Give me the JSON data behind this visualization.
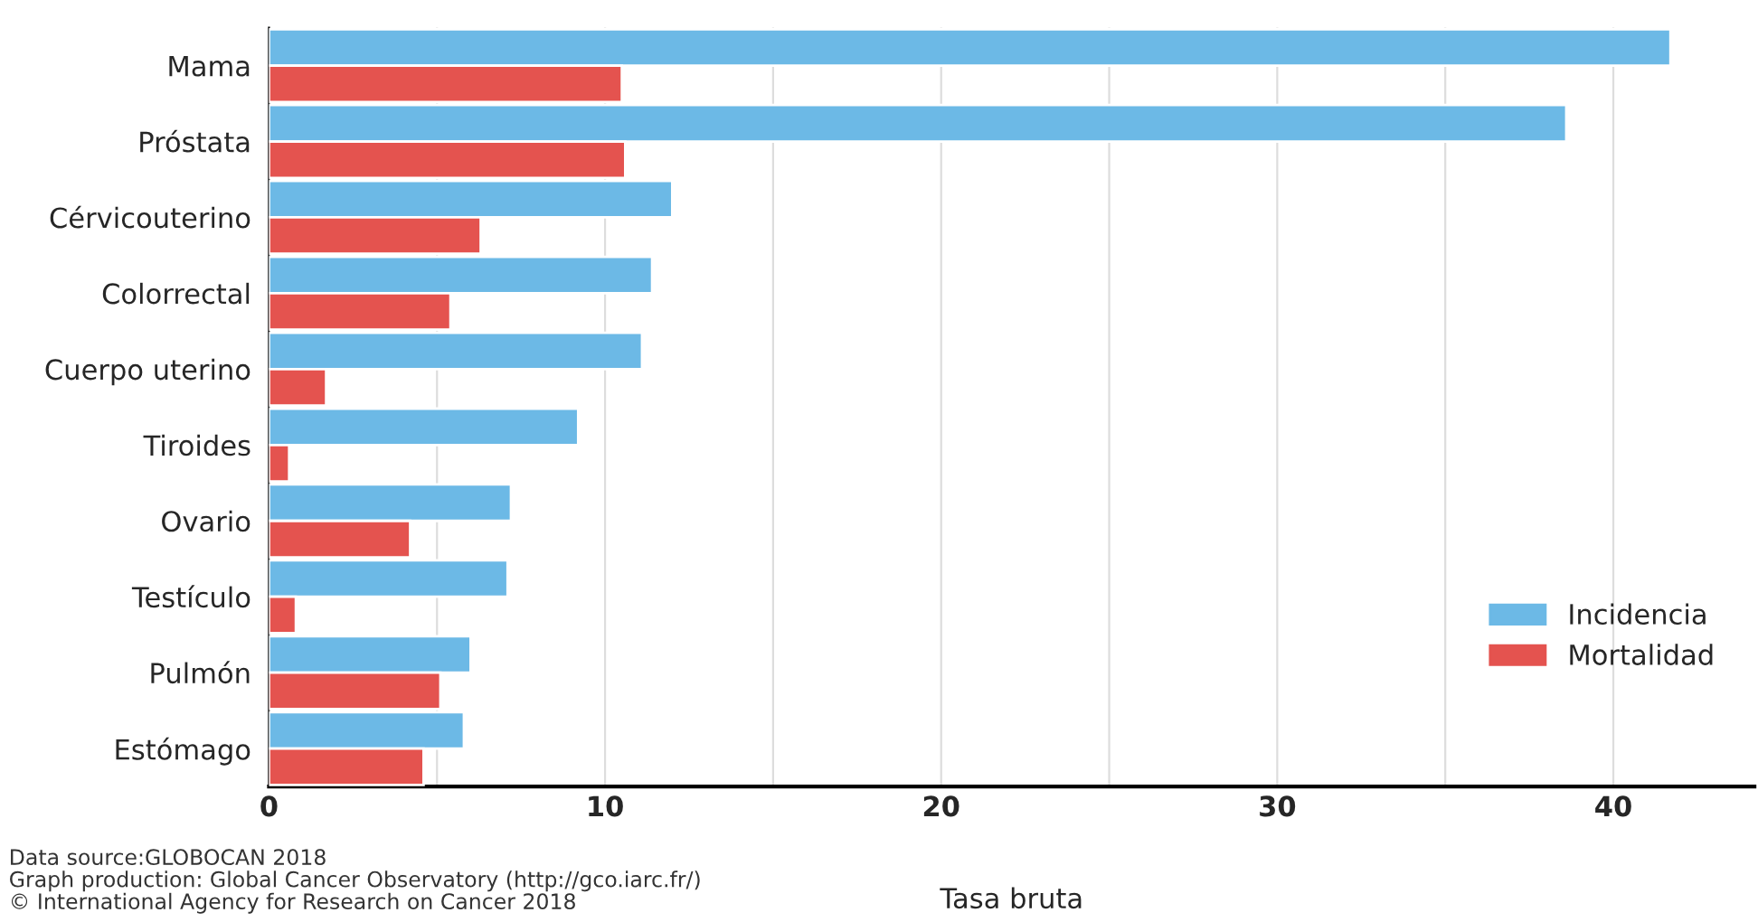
{
  "chart_data": {
    "type": "bar",
    "orientation": "horizontal",
    "xlabel": "Tasa bruta",
    "categories": [
      "Mama",
      "Próstata",
      "Cérvicouterino",
      "Colorrectal",
      "Cuerpo uterino",
      "Tiroides",
      "Ovario",
      "Testículo",
      "Pulmón",
      "Estómago"
    ],
    "series": [
      {
        "name": "Incidencia",
        "color": "#6cb9e6",
        "values": [
          41.7,
          38.6,
          12.0,
          11.4,
          11.1,
          9.2,
          7.2,
          7.1,
          6.0,
          5.8
        ]
      },
      {
        "name": "Mortalidad",
        "color": "#e4534f",
        "values": [
          10.5,
          10.6,
          6.3,
          5.4,
          1.7,
          0.6,
          4.2,
          0.8,
          5.1,
          4.6
        ]
      }
    ],
    "xlim": [
      0,
      44.2
    ],
    "xticks": [
      0,
      {
        "value": 5,
        "label": null
      },
      10,
      {
        "value": 15,
        "label": null
      },
      20,
      {
        "value": 25,
        "label": null
      },
      30,
      {
        "value": 35,
        "label": null
      },
      40
    ],
    "grid": "x",
    "legend": "bottom right",
    "annotations": [
      "Data source:GLOBOCAN 2018",
      "Graph production: Global Cancer Observatory (http://gco.iarc.fr/)",
      "© International Agency for Research on Cancer 2018"
    ]
  }
}
